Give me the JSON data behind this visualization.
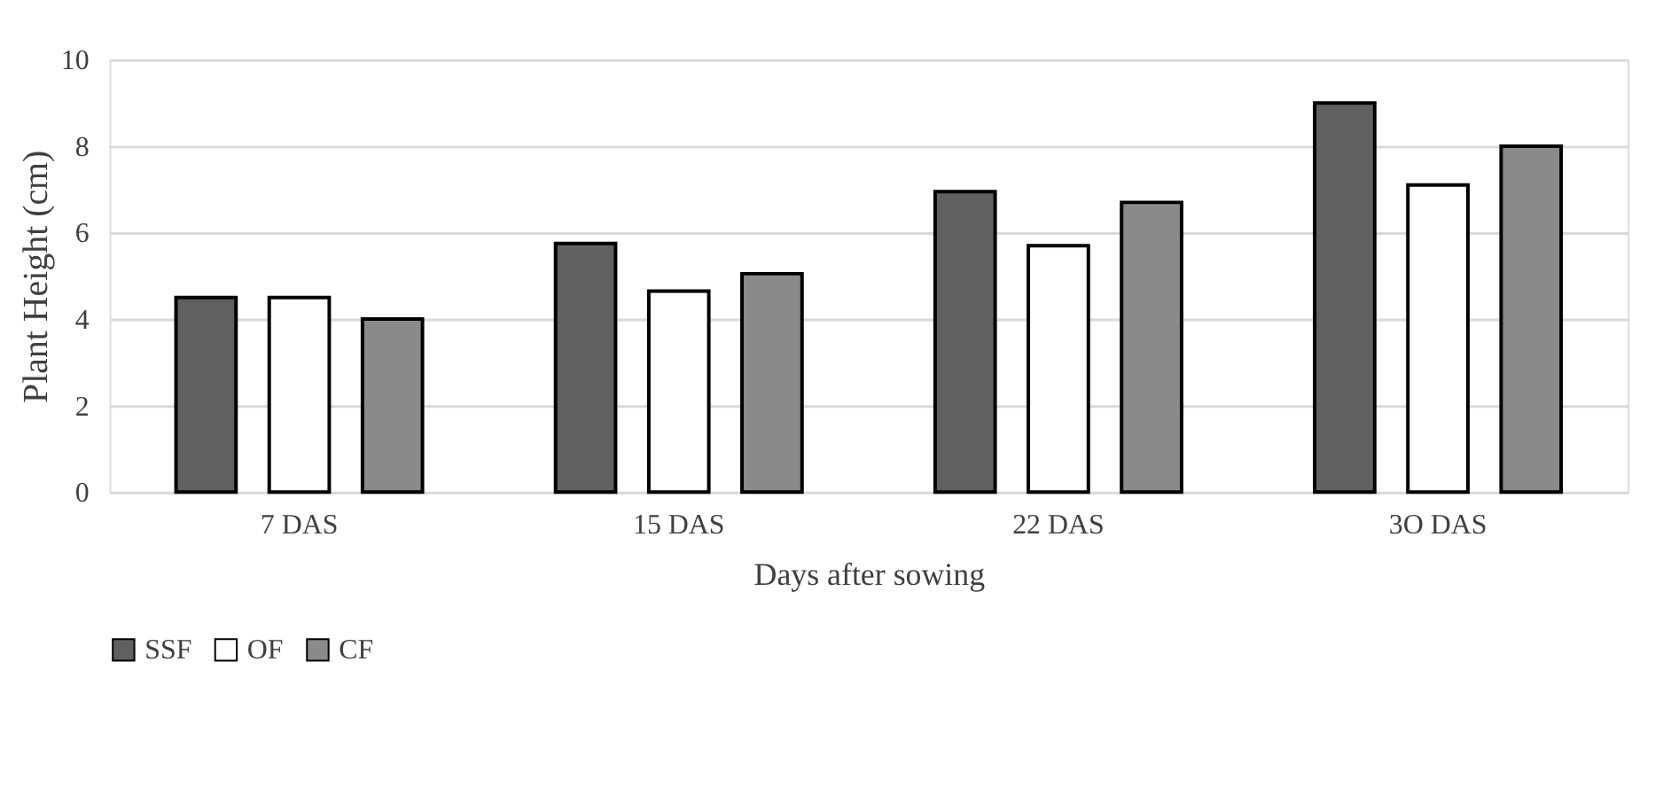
{
  "chart_data": {
    "type": "bar",
    "xlabel": "Days after sowing",
    "ylabel": "Plant Height (cm)",
    "categories": [
      "7 DAS",
      "15 DAS",
      "22 DAS",
      "3O DAS"
    ],
    "series": [
      {
        "name": "SSF",
        "color": "#606060",
        "values": [
          4.5,
          5.75,
          6.95,
          9.0
        ]
      },
      {
        "name": "OF",
        "color": "#ffffff",
        "values": [
          4.5,
          4.65,
          5.7,
          7.1
        ]
      },
      {
        "name": "CF",
        "color": "#8a8a8a",
        "values": [
          4.0,
          5.05,
          6.7,
          8.0
        ]
      }
    ],
    "ylim": [
      0,
      10
    ],
    "yticks": [
      0,
      2,
      4,
      6,
      8,
      10
    ],
    "grid": "y",
    "legend": "bottom"
  }
}
